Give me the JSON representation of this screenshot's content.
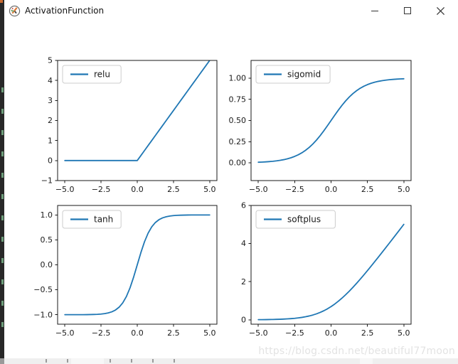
{
  "window": {
    "title": "ActivationFunction",
    "controls": [
      {
        "name": "minimize",
        "glyph": "─"
      },
      {
        "name": "maximize",
        "glyph": "☐"
      },
      {
        "name": "close",
        "glyph": "✕"
      }
    ]
  },
  "watermark": "https://blog.csdn.net/beautiful77moon",
  "colors": {
    "line": "#1f77b4",
    "axes_text": "#1a1a1a",
    "spine": "#1a1a1a",
    "legend_border": "#cccccc",
    "legend_fill": "#ffffff",
    "watermark": "#e3e3e3",
    "editor_edge_bg": "#282828",
    "editor_edge_mark": "#6e9e7b",
    "taskbar_strip": "#efefef"
  },
  "chart_data": [
    {
      "type": "line",
      "position": "top-left",
      "legend_label": "relu",
      "legend_position": "upper left",
      "line_color": "#1f77b4",
      "grid": false,
      "xlim": [
        -5.5,
        5.5
      ],
      "ylim": [
        -1,
        5
      ],
      "xtick_values": [
        -5,
        -2.5,
        0,
        2.5,
        5
      ],
      "xtick_labels": [
        "−5.0",
        "−2.5",
        "0.0",
        "2.5",
        "5.0"
      ],
      "ytick_values": [
        -1,
        0,
        1,
        2,
        3,
        4,
        5
      ],
      "ytick_labels": [
        "−1",
        "0",
        "1",
        "2",
        "3",
        "4",
        "5"
      ],
      "x": [
        -5,
        -4.75,
        -4.5,
        -4.25,
        -4,
        -3.75,
        -3.5,
        -3.25,
        -3,
        -2.75,
        -2.5,
        -2.25,
        -2,
        -1.75,
        -1.5,
        -1.25,
        -1,
        -0.75,
        -0.5,
        -0.25,
        0,
        0.25,
        0.5,
        0.75,
        1,
        1.25,
        1.5,
        1.75,
        2,
        2.25,
        2.5,
        2.75,
        3,
        3.25,
        3.5,
        3.75,
        4,
        4.25,
        4.5,
        4.75,
        5
      ],
      "y": [
        0,
        0,
        0,
        0,
        0,
        0,
        0,
        0,
        0,
        0,
        0,
        0,
        0,
        0,
        0,
        0,
        0,
        0,
        0,
        0,
        0,
        0.25,
        0.5,
        0.75,
        1,
        1.25,
        1.5,
        1.75,
        2,
        2.25,
        2.5,
        2.75,
        3,
        3.25,
        3.5,
        3.75,
        4,
        4.25,
        4.5,
        4.75,
        5
      ]
    },
    {
      "type": "line",
      "position": "top-right",
      "legend_label": "sigomid",
      "legend_position": "upper left",
      "line_color": "#1f77b4",
      "grid": false,
      "xlim": [
        -5.5,
        5.5
      ],
      "ylim": [
        -0.21,
        1.21
      ],
      "xtick_values": [
        -5,
        -2.5,
        0,
        2.5,
        5
      ],
      "xtick_labels": [
        "−5.0",
        "−2.5",
        "0.0",
        "2.5",
        "5.0"
      ],
      "ytick_values": [
        0,
        0.25,
        0.5,
        0.75,
        1
      ],
      "ytick_labels": [
        "0.00",
        "0.25",
        "0.50",
        "0.75",
        "1.00"
      ],
      "x": [
        -5,
        -4.75,
        -4.5,
        -4.25,
        -4,
        -3.75,
        -3.5,
        -3.25,
        -3,
        -2.75,
        -2.5,
        -2.25,
        -2,
        -1.75,
        -1.5,
        -1.25,
        -1,
        -0.75,
        -0.5,
        -0.25,
        0,
        0.25,
        0.5,
        0.75,
        1,
        1.25,
        1.5,
        1.75,
        2,
        2.25,
        2.5,
        2.75,
        3,
        3.25,
        3.5,
        3.75,
        4,
        4.25,
        4.5,
        4.75,
        5
      ],
      "y": [
        0.0067,
        0.0086,
        0.011,
        0.0141,
        0.018,
        0.023,
        0.0293,
        0.0373,
        0.0474,
        0.0601,
        0.0759,
        0.0953,
        0.1192,
        0.148,
        0.1824,
        0.2227,
        0.2689,
        0.3208,
        0.3775,
        0.4378,
        0.5,
        0.5622,
        0.6225,
        0.6792,
        0.7311,
        0.7773,
        0.8176,
        0.852,
        0.8808,
        0.9047,
        0.9241,
        0.9399,
        0.9526,
        0.9627,
        0.9707,
        0.977,
        0.982,
        0.9859,
        0.989,
        0.9914,
        0.9933
      ]
    },
    {
      "type": "line",
      "position": "bottom-left",
      "legend_label": "tanh",
      "legend_position": "upper left",
      "line_color": "#1f77b4",
      "grid": false,
      "xlim": [
        -5.5,
        5.5
      ],
      "ylim": [
        -1.19,
        1.19
      ],
      "xtick_values": [
        -5,
        -2.5,
        0,
        2.5,
        5
      ],
      "xtick_labels": [
        "−5.0",
        "−2.5",
        "0.0",
        "2.5",
        "5.0"
      ],
      "ytick_values": [
        -1,
        -0.5,
        0,
        0.5,
        1
      ],
      "ytick_labels": [
        "−1.0",
        "−0.5",
        "0.0",
        "0.5",
        "1.0"
      ],
      "x": [
        -5,
        -4.75,
        -4.5,
        -4.25,
        -4,
        -3.75,
        -3.5,
        -3.25,
        -3,
        -2.75,
        -2.5,
        -2.25,
        -2,
        -1.75,
        -1.5,
        -1.25,
        -1,
        -0.75,
        -0.5,
        -0.25,
        0,
        0.25,
        0.5,
        0.75,
        1,
        1.25,
        1.5,
        1.75,
        2,
        2.25,
        2.5,
        2.75,
        3,
        3.25,
        3.5,
        3.75,
        4,
        4.25,
        4.5,
        4.75,
        5
      ],
      "y": [
        -0.9999,
        -0.9998,
        -0.9998,
        -0.9996,
        -0.9993,
        -0.9989,
        -0.9982,
        -0.997,
        -0.9951,
        -0.9919,
        -0.9866,
        -0.978,
        -0.964,
        -0.9414,
        -0.9051,
        -0.8483,
        -0.7616,
        -0.6351,
        -0.4621,
        -0.2449,
        0,
        0.2449,
        0.4621,
        0.6351,
        0.7616,
        0.8483,
        0.9051,
        0.9414,
        0.964,
        0.978,
        0.9866,
        0.9919,
        0.9951,
        0.997,
        0.9982,
        0.9989,
        0.9993,
        0.9996,
        0.9998,
        0.9998,
        0.9999
      ]
    },
    {
      "type": "line",
      "position": "bottom-right",
      "legend_label": "softplus",
      "legend_position": "upper left",
      "line_color": "#1f77b4",
      "grid": false,
      "xlim": [
        -5.5,
        5.5
      ],
      "ylim": [
        -0.23,
        6
      ],
      "xtick_values": [
        -5,
        -2.5,
        0,
        2.5,
        5
      ],
      "xtick_labels": [
        "−5.0",
        "−2.5",
        "0.0",
        "2.5",
        "5.0"
      ],
      "ytick_values": [
        0,
        2,
        4,
        6
      ],
      "ytick_labels": [
        "0",
        "2",
        "4",
        "6"
      ],
      "x": [
        -5,
        -4.75,
        -4.5,
        -4.25,
        -4,
        -3.75,
        -3.5,
        -3.25,
        -3,
        -2.75,
        -2.5,
        -2.25,
        -2,
        -1.75,
        -1.5,
        -1.25,
        -1,
        -0.75,
        -0.5,
        -0.25,
        0,
        0.25,
        0.5,
        0.75,
        1,
        1.25,
        1.5,
        1.75,
        2,
        2.25,
        2.5,
        2.75,
        3,
        3.25,
        3.5,
        3.75,
        4,
        4.25,
        4.5,
        4.75,
        5
      ],
      "y": [
        0.0067,
        0.0086,
        0.0111,
        0.0142,
        0.0181,
        0.0233,
        0.0297,
        0.038,
        0.0486,
        0.062,
        0.0789,
        0.1002,
        0.1269,
        0.1602,
        0.2014,
        0.2518,
        0.3133,
        0.3869,
        0.4741,
        0.5759,
        0.6931,
        0.8259,
        0.9741,
        1.1369,
        1.3133,
        1.5018,
        1.7014,
        1.9102,
        2.1269,
        2.3502,
        2.5789,
        2.812,
        3.0486,
        3.288,
        3.5297,
        3.7732,
        4.0181,
        4.2642,
        4.511,
        4.7586,
        5.0067
      ]
    }
  ]
}
